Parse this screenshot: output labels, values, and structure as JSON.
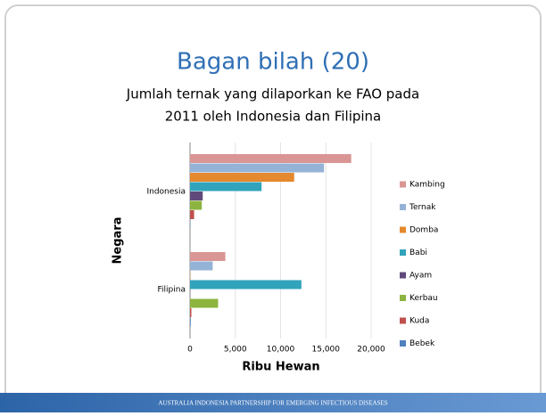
{
  "title": "Bagan bilah (20)",
  "footer": "AUSTRALIA INDONESIA PARTNERSHIP FOR EMERGING INFECTIOUS DISEASES",
  "chart_data": {
    "type": "hbar",
    "subtitle": [
      "Jumlah ternak yang dilaporkan ke FAO pada",
      "2011 oleh Indonesia dan Filipina"
    ],
    "x_label": "Ribu Hewan",
    "y_label": "Negara",
    "categories": [
      "Indonesia",
      "Filipina"
    ],
    "series": [
      {
        "name": "Kambing",
        "color": "#d99694",
        "values": [
          17800,
          3900
        ]
      },
      {
        "name": "Ternak",
        "color": "#95b3d7",
        "values": [
          14800,
          2500
        ]
      },
      {
        "name": "Domba",
        "color": "#e4892d",
        "values": [
          11500,
          30
        ]
      },
      {
        "name": "Babi",
        "color": "#31a3bb",
        "values": [
          7900,
          12300
        ]
      },
      {
        "name": "Ayam",
        "color": "#604a7b",
        "values": [
          1400,
          10
        ]
      },
      {
        "name": "Kerbau",
        "color": "#8cb43e",
        "values": [
          1300,
          3100
        ]
      },
      {
        "name": "Kuda",
        "color": "#c0504d",
        "values": [
          450,
          150
        ]
      },
      {
        "name": "Bebek",
        "color": "#4f81bd",
        "values": [
          40,
          80
        ]
      }
    ],
    "xlim": [
      0,
      20000
    ],
    "xticks": [
      0,
      {
        "value": 5000,
        "label": "5,000"
      },
      {
        "value": 10000,
        "label": "10,000"
      },
      {
        "value": 15000,
        "label": "15,000"
      },
      {
        "value": 20000,
        "label": "20,000"
      }
    ],
    "grid": true,
    "legend": "right"
  }
}
